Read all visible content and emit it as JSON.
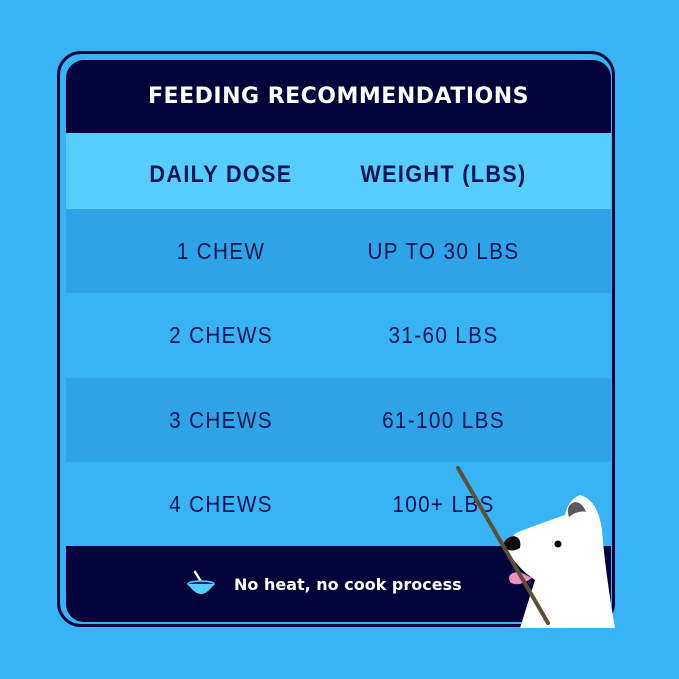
{
  "title": "FEEDING RECOMMENDATIONS",
  "columns": [
    "DAILY DOSE",
    "WEIGHT (LBS)"
  ],
  "rows": [
    {
      "dose": "1 CHEW",
      "weight": "UP TO 30 LBS"
    },
    {
      "dose": "2 CHEWS",
      "weight": "31-60 LBS"
    },
    {
      "dose": "3 CHEWS",
      "weight": "61-100 LBS"
    },
    {
      "dose": "4 CHEWS",
      "weight": "100+ LBS"
    }
  ],
  "footer": {
    "icon": "bowl-icon",
    "text": "No heat, no cook process"
  },
  "colors": {
    "background": "#38b3f5",
    "navy": "#02033a",
    "header_row": "#55cdfd",
    "row_dark": "#2fa3e8"
  }
}
